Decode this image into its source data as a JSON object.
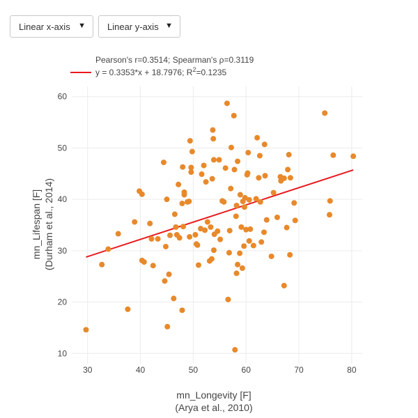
{
  "controls": {
    "x_axis_dropdown": {
      "label": "Linear x-axis",
      "arrow": "▼"
    },
    "y_axis_dropdown": {
      "label": "Linear y-axis",
      "arrow": "▼"
    }
  },
  "chart_data": {
    "type": "scatter",
    "legend": {
      "stats_line": "Pearson's r=0.3514; Spearman's ρ=0.3119",
      "regression_label_prefix": "y = 0.3353*x + 18.7976; R",
      "regression_label_sup": "2",
      "regression_label_suffix": "=0.1235"
    },
    "xlabel": [
      "mn_Longevity [F]",
      "(Arya et al., 2010)"
    ],
    "ylabel": [
      "mn_Lifespan [F]",
      "(Durham et al., 2014)"
    ],
    "xlim": [
      27,
      82
    ],
    "ylim": [
      8,
      62
    ],
    "xticks": [
      30,
      40,
      50,
      60,
      70,
      80
    ],
    "yticks": [
      10,
      20,
      30,
      40,
      50,
      60
    ],
    "grid": true,
    "colors": {
      "points": "#e8892b",
      "regression": "#e8191e",
      "grid": "#ececec"
    },
    "regression": {
      "slope": 0.3353,
      "intercept": 18.7976,
      "x_range": [
        29.7,
        80.3
      ]
    },
    "points": [
      [
        29.7,
        14.6
      ],
      [
        32.7,
        27.3
      ],
      [
        33.9,
        30.3
      ],
      [
        35.8,
        33.3
      ],
      [
        37.6,
        18.6
      ],
      [
        38.9,
        35.6
      ],
      [
        39.8,
        41.6
      ],
      [
        40.3,
        41.0
      ],
      [
        40.3,
        28.1
      ],
      [
        40.7,
        27.8
      ],
      [
        41.8,
        35.3
      ],
      [
        42.1,
        32.3
      ],
      [
        42.4,
        27.1
      ],
      [
        43.3,
        32.3
      ],
      [
        44.4,
        47.2
      ],
      [
        44.6,
        24.1
      ],
      [
        44.8,
        30.8
      ],
      [
        45.0,
        40.0
      ],
      [
        45.1,
        15.2
      ],
      [
        45.4,
        25.4
      ],
      [
        45.6,
        33.0
      ],
      [
        46.3,
        20.7
      ],
      [
        46.5,
        37.1
      ],
      [
        46.7,
        34.6
      ],
      [
        46.9,
        33.1
      ],
      [
        47.2,
        42.9
      ],
      [
        47.4,
        32.5
      ],
      [
        47.9,
        18.4
      ],
      [
        47.9,
        39.2
      ],
      [
        48.0,
        46.3
      ],
      [
        48.1,
        34.7
      ],
      [
        48.3,
        40.9
      ],
      [
        48.3,
        41.4
      ],
      [
        48.9,
        39.5
      ],
      [
        49.2,
        39.6
      ],
      [
        49.3,
        32.7
      ],
      [
        49.4,
        51.4
      ],
      [
        49.6,
        45.3
      ],
      [
        49.6,
        46.2
      ],
      [
        49.8,
        49.3
      ],
      [
        50.4,
        33.1
      ],
      [
        50.6,
        31.3
      ],
      [
        50.8,
        31.1
      ],
      [
        51.0,
        27.2
      ],
      [
        51.4,
        34.3
      ],
      [
        51.6,
        44.9
      ],
      [
        52.0,
        46.6
      ],
      [
        52.2,
        34.0
      ],
      [
        52.4,
        43.4
      ],
      [
        52.7,
        35.6
      ],
      [
        53.1,
        28.0
      ],
      [
        53.3,
        34.6
      ],
      [
        53.5,
        28.4
      ],
      [
        53.6,
        44.0
      ],
      [
        53.7,
        53.5
      ],
      [
        53.8,
        51.8
      ],
      [
        53.9,
        30.1
      ],
      [
        53.9,
        47.7
      ],
      [
        54.0,
        33.2
      ],
      [
        54.6,
        33.8
      ],
      [
        54.9,
        47.7
      ],
      [
        55.1,
        32.2
      ],
      [
        55.5,
        39.7
      ],
      [
        55.8,
        39.5
      ],
      [
        56.1,
        46.1
      ],
      [
        56.4,
        58.7
      ],
      [
        56.6,
        20.5
      ],
      [
        56.8,
        29.6
      ],
      [
        56.9,
        33.9
      ],
      [
        57.1,
        42.1
      ],
      [
        57.2,
        50.1
      ],
      [
        57.7,
        56.3
      ],
      [
        57.8,
        45.8
      ],
      [
        57.9,
        10.7
      ],
      [
        58.1,
        36.7
      ],
      [
        58.2,
        38.8
      ],
      [
        58.2,
        25.6
      ],
      [
        58.4,
        27.3
      ],
      [
        58.4,
        47.4
      ],
      [
        58.8,
        29.5
      ],
      [
        58.9,
        40.9
      ],
      [
        59.1,
        34.6
      ],
      [
        59.3,
        26.6
      ],
      [
        59.4,
        39.6
      ],
      [
        59.6,
        30.9
      ],
      [
        59.7,
        38.5
      ],
      [
        59.8,
        40.3
      ],
      [
        60.0,
        34.1
      ],
      [
        60.2,
        44.8
      ],
      [
        60.3,
        45.1
      ],
      [
        60.4,
        49.1
      ],
      [
        60.6,
        31.9
      ],
      [
        60.6,
        39.9
      ],
      [
        60.8,
        34.2
      ],
      [
        61.4,
        31.0
      ],
      [
        61.9,
        40.1
      ],
      [
        62.1,
        52.0
      ],
      [
        62.4,
        44.2
      ],
      [
        62.6,
        48.5
      ],
      [
        62.7,
        39.5
      ],
      [
        62.9,
        31.7
      ],
      [
        63.4,
        33.6
      ],
      [
        63.5,
        50.7
      ],
      [
        63.6,
        44.6
      ],
      [
        63.9,
        36.0
      ],
      [
        64.8,
        28.9
      ],
      [
        65.2,
        41.3
      ],
      [
        65.9,
        36.5
      ],
      [
        66.5,
        44.4
      ],
      [
        66.6,
        43.6
      ],
      [
        67.2,
        23.2
      ],
      [
        67.2,
        44.1
      ],
      [
        67.7,
        34.5
      ],
      [
        67.9,
        45.8
      ],
      [
        68.1,
        48.7
      ],
      [
        68.3,
        29.2
      ],
      [
        68.4,
        44.2
      ],
      [
        69.1,
        39.3
      ],
      [
        69.3,
        35.9
      ],
      [
        74.9,
        56.8
      ],
      [
        75.8,
        37.0
      ],
      [
        75.9,
        39.7
      ],
      [
        76.5,
        48.6
      ],
      [
        80.3,
        48.4
      ]
    ]
  }
}
